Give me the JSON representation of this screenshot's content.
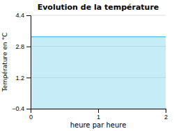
{
  "chart_data": {
    "type": "area",
    "title": "Evolution de la température",
    "x_label": "heure par heure",
    "y_label": "Température en °C",
    "x": [
      0,
      2
    ],
    "values": [
      3.3,
      3.3
    ],
    "color": "#5bc8e8",
    "xlim": [
      0,
      2
    ],
    "xticks": [
      0,
      1,
      2
    ],
    "ylim": [
      -0.4,
      4.4
    ],
    "yticks": [
      {
        "value": -0.4,
        "label": "−0.4"
      },
      1.2,
      2.8,
      4.4
    ],
    "grid": "y"
  }
}
